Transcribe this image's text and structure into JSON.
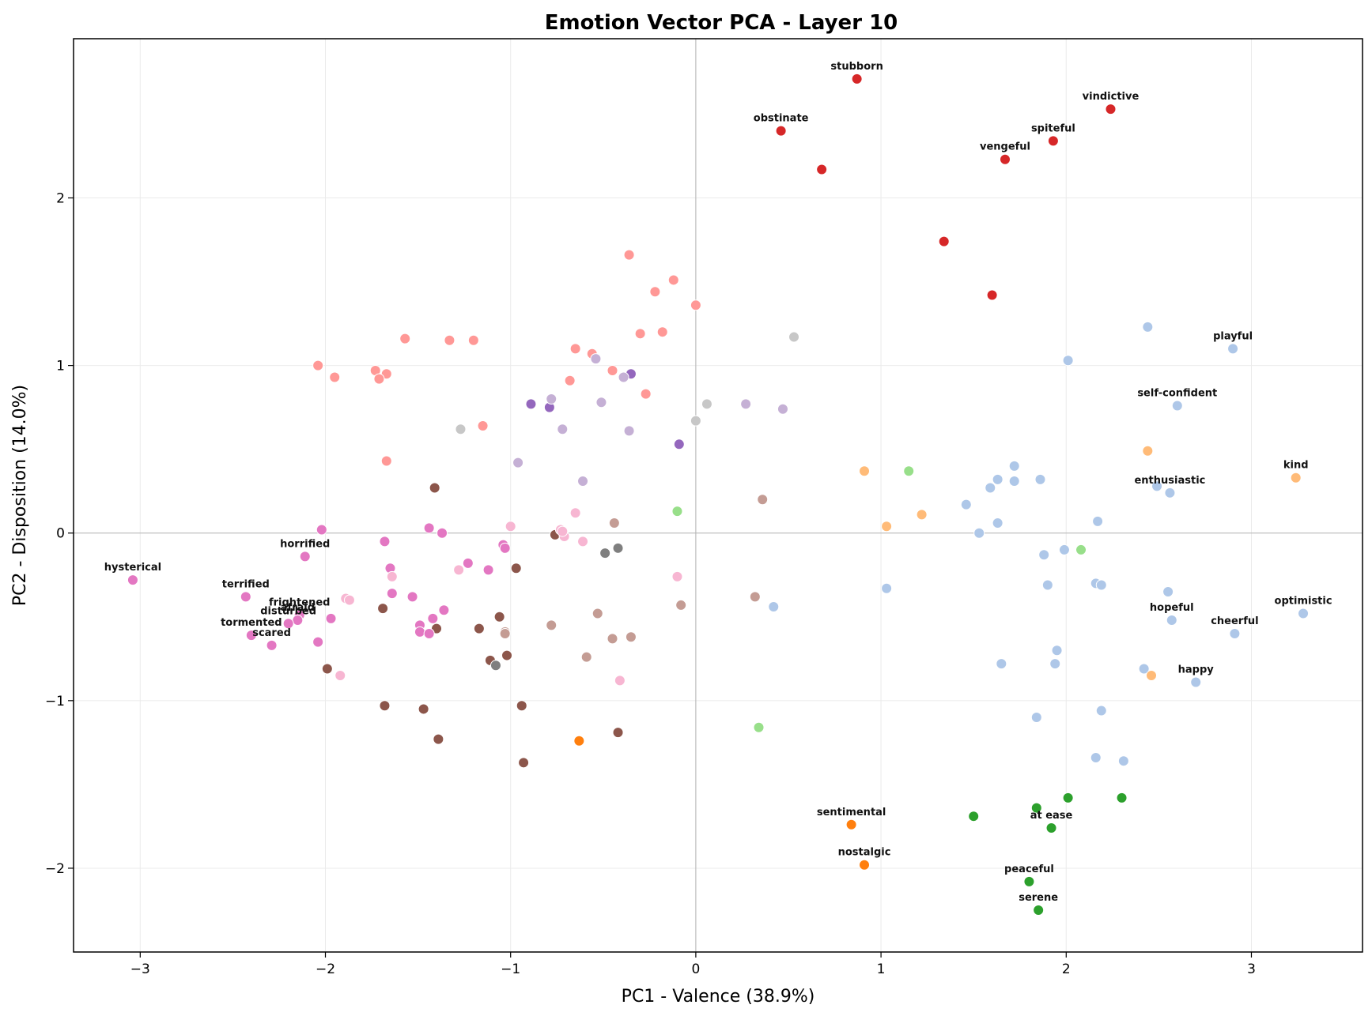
{
  "chart_data": {
    "type": "scatter",
    "title": "Emotion Vector PCA - Layer 10",
    "xlabel": "PC1 - Valence (38.9%)",
    "ylabel": "PC2 - Disposition (14.0%)",
    "xlim": [
      -3.36,
      3.6
    ],
    "ylim": [
      -2.5,
      2.95
    ],
    "xticks": [
      -3,
      -2,
      -1,
      0,
      1,
      2,
      3
    ],
    "yticks": [
      -2,
      -1,
      0,
      1,
      2
    ],
    "xtick_labels": [
      "−3",
      "−2",
      "−1",
      "0",
      "1",
      "2",
      "3"
    ],
    "ytick_labels": [
      "−2",
      "−1",
      "0",
      "1",
      "2"
    ],
    "grid": true,
    "reference_lines": {
      "x": 0,
      "y": 0
    },
    "groups": [
      {
        "color": "#d62728",
        "points": [
          {
            "x": 0.87,
            "y": 2.71,
            "label": "stubborn"
          },
          {
            "x": 0.46,
            "y": 2.4,
            "label": "obstinate"
          },
          {
            "x": 2.24,
            "y": 2.53,
            "label": "vindictive"
          },
          {
            "x": 1.93,
            "y": 2.34,
            "label": "spiteful"
          },
          {
            "x": 1.67,
            "y": 2.23,
            "label": "vengeful"
          },
          {
            "x": 0.68,
            "y": 2.17
          },
          {
            "x": 1.34,
            "y": 1.74
          },
          {
            "x": 1.6,
            "y": 1.42
          }
        ]
      },
      {
        "color": "#ff9896",
        "points": [
          {
            "x": -0.36,
            "y": 1.66
          },
          {
            "x": -0.12,
            "y": 1.51
          },
          {
            "x": -0.22,
            "y": 1.44
          },
          {
            "x": 0.0,
            "y": 1.36
          },
          {
            "x": -0.3,
            "y": 1.19
          },
          {
            "x": -0.18,
            "y": 1.2
          },
          {
            "x": -1.57,
            "y": 1.16
          },
          {
            "x": -1.33,
            "y": 1.15
          },
          {
            "x": -1.2,
            "y": 1.15
          },
          {
            "x": -0.65,
            "y": 1.1
          },
          {
            "x": -0.56,
            "y": 1.07
          },
          {
            "x": -0.45,
            "y": 0.97
          },
          {
            "x": -0.68,
            "y": 0.91
          },
          {
            "x": -0.27,
            "y": 0.83
          },
          {
            "x": -2.04,
            "y": 1.0
          },
          {
            "x": -1.73,
            "y": 0.97
          },
          {
            "x": -1.67,
            "y": 0.95
          },
          {
            "x": -1.95,
            "y": 0.93
          },
          {
            "x": -1.71,
            "y": 0.92
          },
          {
            "x": -1.15,
            "y": 0.64
          },
          {
            "x": -1.67,
            "y": 0.43
          }
        ]
      },
      {
        "color": "#9467bd",
        "points": [
          {
            "x": -0.35,
            "y": 0.95
          },
          {
            "x": -0.89,
            "y": 0.77
          },
          {
            "x": -0.79,
            "y": 0.75
          },
          {
            "x": -0.09,
            "y": 0.53
          }
        ]
      },
      {
        "color": "#c5b0d5",
        "points": [
          {
            "x": -0.54,
            "y": 1.04
          },
          {
            "x": -0.39,
            "y": 0.93
          },
          {
            "x": -0.78,
            "y": 0.8
          },
          {
            "x": -0.51,
            "y": 0.78
          },
          {
            "x": 0.27,
            "y": 0.77
          },
          {
            "x": 0.47,
            "y": 0.74
          },
          {
            "x": -0.72,
            "y": 0.62
          },
          {
            "x": -0.36,
            "y": 0.61
          },
          {
            "x": -0.96,
            "y": 0.42
          },
          {
            "x": -0.61,
            "y": 0.31
          }
        ]
      },
      {
        "color": "#c7c7c7",
        "points": [
          {
            "x": 0.53,
            "y": 1.17
          },
          {
            "x": 0.06,
            "y": 0.77
          },
          {
            "x": 0.0,
            "y": 0.67
          },
          {
            "x": -1.27,
            "y": 0.62
          }
        ]
      },
      {
        "color": "#aec7e8",
        "points": [
          {
            "x": 2.44,
            "y": 1.23,
            "label": null
          },
          {
            "x": 2.9,
            "y": 1.1,
            "label": "playful"
          },
          {
            "x": 2.01,
            "y": 1.03
          },
          {
            "x": 2.6,
            "y": 0.76,
            "label": "self-confident"
          },
          {
            "x": 1.72,
            "y": 0.4
          },
          {
            "x": 1.63,
            "y": 0.32
          },
          {
            "x": 1.72,
            "y": 0.31
          },
          {
            "x": 1.86,
            "y": 0.32
          },
          {
            "x": 1.59,
            "y": 0.27
          },
          {
            "x": 2.49,
            "y": 0.28
          },
          {
            "x": 2.56,
            "y": 0.24,
            "label": "enthusiastic"
          },
          {
            "x": 1.46,
            "y": 0.17
          },
          {
            "x": 1.63,
            "y": 0.06
          },
          {
            "x": 2.17,
            "y": 0.07
          },
          {
            "x": 1.53,
            "y": 0.0
          },
          {
            "x": 1.88,
            "y": -0.13
          },
          {
            "x": 1.99,
            "y": -0.1
          },
          {
            "x": 1.9,
            "y": -0.31
          },
          {
            "x": 2.16,
            "y": -0.3
          },
          {
            "x": 2.19,
            "y": -0.31
          },
          {
            "x": 1.03,
            "y": -0.33
          },
          {
            "x": 2.55,
            "y": -0.35
          },
          {
            "x": 0.42,
            "y": -0.44
          },
          {
            "x": 3.28,
            "y": -0.48,
            "label": "optimistic"
          },
          {
            "x": 2.57,
            "y": -0.52,
            "label": "hopeful"
          },
          {
            "x": 2.91,
            "y": -0.6,
            "label": "cheerful"
          },
          {
            "x": 1.95,
            "y": -0.7
          },
          {
            "x": 1.65,
            "y": -0.78
          },
          {
            "x": 1.94,
            "y": -0.78
          },
          {
            "x": 2.42,
            "y": -0.81
          },
          {
            "x": 2.7,
            "y": -0.89,
            "label": "happy"
          },
          {
            "x": 2.19,
            "y": -1.06
          },
          {
            "x": 1.84,
            "y": -1.1
          },
          {
            "x": 2.16,
            "y": -1.34
          },
          {
            "x": 2.31,
            "y": -1.36
          }
        ]
      },
      {
        "color": "#ffbb78",
        "points": [
          {
            "x": 3.24,
            "y": 0.33,
            "label": "kind"
          },
          {
            "x": 2.44,
            "y": 0.49
          },
          {
            "x": 0.91,
            "y": 0.37
          },
          {
            "x": 1.22,
            "y": 0.11
          },
          {
            "x": 1.03,
            "y": 0.04
          },
          {
            "x": 2.46,
            "y": -0.85
          }
        ]
      },
      {
        "color": "#98df8a",
        "points": [
          {
            "x": 1.15,
            "y": 0.37
          },
          {
            "x": -0.1,
            "y": 0.13
          },
          {
            "x": 2.08,
            "y": -0.1
          },
          {
            "x": 0.34,
            "y": -1.16
          }
        ]
      },
      {
        "color": "#2ca02c",
        "points": [
          {
            "x": 2.01,
            "y": -1.58
          },
          {
            "x": 2.3,
            "y": -1.58
          },
          {
            "x": 1.84,
            "y": -1.64
          },
          {
            "x": 1.5,
            "y": -1.69
          },
          {
            "x": 1.92,
            "y": -1.76,
            "label": "at ease"
          },
          {
            "x": 1.8,
            "y": -2.08,
            "label": "peaceful"
          },
          {
            "x": 1.85,
            "y": -2.25,
            "label": "serene"
          }
        ]
      },
      {
        "color": "#ff7f0e",
        "points": [
          {
            "x": -0.63,
            "y": -1.24
          },
          {
            "x": 0.84,
            "y": -1.74,
            "label": "sentimental"
          },
          {
            "x": 0.91,
            "y": -1.98,
            "label": "nostalgic"
          }
        ]
      },
      {
        "color": "#8c564b",
        "points": [
          {
            "x": -1.41,
            "y": 0.27
          },
          {
            "x": -0.76,
            "y": -0.01
          },
          {
            "x": -0.97,
            "y": -0.21
          },
          {
            "x": -1.69,
            "y": -0.45
          },
          {
            "x": -1.06,
            "y": -0.5
          },
          {
            "x": -1.4,
            "y": -0.57
          },
          {
            "x": -1.17,
            "y": -0.57
          },
          {
            "x": -1.02,
            "y": -0.73
          },
          {
            "x": -1.11,
            "y": -0.76
          },
          {
            "x": -1.99,
            "y": -0.81
          },
          {
            "x": -1.68,
            "y": -1.03
          },
          {
            "x": -0.94,
            "y": -1.03
          },
          {
            "x": -1.47,
            "y": -1.05
          },
          {
            "x": -0.42,
            "y": -1.19
          },
          {
            "x": -1.39,
            "y": -1.23
          },
          {
            "x": -0.93,
            "y": -1.37
          }
        ]
      },
      {
        "color": "#c49c94",
        "points": [
          {
            "x": 0.36,
            "y": 0.2
          },
          {
            "x": -0.44,
            "y": 0.06
          },
          {
            "x": 0.32,
            "y": -0.38
          },
          {
            "x": -0.08,
            "y": -0.43
          },
          {
            "x": -0.53,
            "y": -0.48
          },
          {
            "x": -0.78,
            "y": -0.55
          },
          {
            "x": -1.03,
            "y": -0.59
          },
          {
            "x": -1.03,
            "y": -0.6
          },
          {
            "x": -0.35,
            "y": -0.62
          },
          {
            "x": -0.45,
            "y": -0.63
          },
          {
            "x": -0.59,
            "y": -0.74
          }
        ]
      },
      {
        "color": "#7f7f7f",
        "points": [
          {
            "x": -0.42,
            "y": -0.09
          },
          {
            "x": -0.49,
            "y": -0.12
          },
          {
            "x": -1.08,
            "y": -0.79
          }
        ]
      },
      {
        "color": "#e377c2",
        "points": [
          {
            "x": -3.04,
            "y": -0.28,
            "label": "hysterical"
          },
          {
            "x": -2.11,
            "y": -0.14,
            "label": "horrified"
          },
          {
            "x": -2.43,
            "y": -0.38,
            "label": "terrified"
          },
          {
            "x": -2.14,
            "y": -0.49,
            "label": "frightened"
          },
          {
            "x": -2.15,
            "y": -0.52,
            "label": "afraid"
          },
          {
            "x": -2.2,
            "y": -0.54,
            "label": "disturbed"
          },
          {
            "x": -2.4,
            "y": -0.61,
            "label": "tormented"
          },
          {
            "x": -2.29,
            "y": -0.67,
            "label": "scared"
          },
          {
            "x": -2.02,
            "y": 0.02
          },
          {
            "x": -1.68,
            "y": -0.05
          },
          {
            "x": -1.44,
            "y": 0.03
          },
          {
            "x": -1.37,
            "y": 0.0
          },
          {
            "x": -1.04,
            "y": -0.07
          },
          {
            "x": -1.03,
            "y": -0.09
          },
          {
            "x": -1.23,
            "y": -0.18
          },
          {
            "x": -1.65,
            "y": -0.21
          },
          {
            "x": -1.12,
            "y": -0.22
          },
          {
            "x": -1.64,
            "y": -0.36
          },
          {
            "x": -1.53,
            "y": -0.38
          },
          {
            "x": -1.36,
            "y": -0.46
          },
          {
            "x": -1.97,
            "y": -0.51
          },
          {
            "x": -1.42,
            "y": -0.51
          },
          {
            "x": -1.49,
            "y": -0.55
          },
          {
            "x": -1.49,
            "y": -0.59
          },
          {
            "x": -1.44,
            "y": -0.6
          },
          {
            "x": -2.04,
            "y": -0.65
          }
        ]
      },
      {
        "color": "#f7b6d2",
        "points": [
          {
            "x": -1.0,
            "y": 0.04
          },
          {
            "x": -0.73,
            "y": 0.02
          },
          {
            "x": -0.71,
            "y": -0.02
          },
          {
            "x": -0.61,
            "y": -0.05
          },
          {
            "x": -0.65,
            "y": 0.12
          },
          {
            "x": -1.28,
            "y": -0.22
          },
          {
            "x": -1.64,
            "y": -0.26
          },
          {
            "x": -0.1,
            "y": -0.26
          },
          {
            "x": -1.89,
            "y": -0.39
          },
          {
            "x": -1.87,
            "y": -0.4
          },
          {
            "x": -0.72,
            "y": 0.01
          },
          {
            "x": -1.92,
            "y": -0.85
          },
          {
            "x": -0.41,
            "y": -0.88
          }
        ]
      }
    ]
  }
}
